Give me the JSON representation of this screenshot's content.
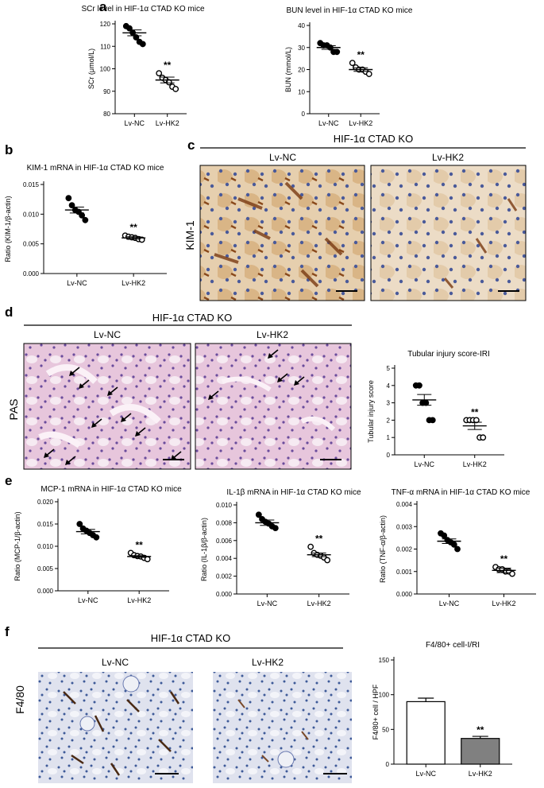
{
  "panels": {
    "a": "a",
    "b": "b",
    "c": "c",
    "d": "d",
    "e": "e",
    "f": "f"
  },
  "group_headers": {
    "c": "HIF-1α CTAD KO",
    "d": "HIF-1α CTAD KO",
    "f": "HIF-1α CTAD KO"
  },
  "micro_labels": {
    "c_left": "Lv-NC",
    "c_right": "Lv-HK2",
    "c_row": "KIM-1",
    "d_left": "Lv-NC",
    "d_right": "Lv-HK2",
    "d_row": "PAS",
    "f_left": "Lv-NC",
    "f_right": "Lv-HK2",
    "f_row": "F4/80"
  },
  "colors": {
    "ihc_bg": "#e9d6c0",
    "ihc_nuclei": "#4a5a9a",
    "ihc_brown": "#a8642a",
    "pas_bg": "#eacbe0",
    "pas_nuclei": "#6a4c9c",
    "f480_bg": "#dfe2ee",
    "f480_nuclei": "#3e5a98",
    "f480_brown": "#4a2a14",
    "bar_hk2": "#808080"
  },
  "icons": {
    "arrow": "black-arrow-icon"
  },
  "chart_data": [
    {
      "id": "a1",
      "type": "scatter",
      "title": "SCr level in HIF-1α CTAD KO mice",
      "ylabel": "SCr (μmol/L)",
      "ylim": [
        80,
        120
      ],
      "yticks": [
        80,
        90,
        100,
        110,
        120
      ],
      "categories": [
        "Lv-NC",
        "Lv-HK2"
      ],
      "series": [
        {
          "values": [
            119,
            118,
            116,
            114,
            112,
            111
          ],
          "mean": 116,
          "sem": 1.3,
          "marker": "filled"
        },
        {
          "values": [
            98,
            96,
            95,
            94,
            92,
            91
          ],
          "mean": 95,
          "sem": 1.3,
          "marker": "open"
        }
      ],
      "significance": [
        {
          "category": "Lv-HK2",
          "label": "**"
        }
      ]
    },
    {
      "id": "a2",
      "type": "scatter",
      "title": "BUN level in HIF-1α CTAD KO mice",
      "ylabel": "BUN (mmol/L)",
      "ylim": [
        0,
        40
      ],
      "yticks": [
        0,
        10,
        20,
        30,
        40
      ],
      "categories": [
        "Lv-NC",
        "Lv-HK2"
      ],
      "series": [
        {
          "values": [
            32,
            31,
            31,
            30,
            28,
            28
          ],
          "mean": 30,
          "sem": 0.8,
          "marker": "filled"
        },
        {
          "values": [
            23,
            21,
            20,
            20,
            19,
            18
          ],
          "mean": 20,
          "sem": 0.8,
          "marker": "open"
        }
      ],
      "significance": [
        {
          "category": "Lv-HK2",
          "label": "**"
        }
      ]
    },
    {
      "id": "b",
      "type": "scatter",
      "title": "KIM-1 mRNA in HIF-1α CTAD KO mice",
      "ylabel": "Ratio (KIM-1/β-actin)",
      "ylim": [
        0,
        0.015
      ],
      "yticks": [
        "0.000",
        "0.005",
        "0.010",
        "0.015"
      ],
      "ytick_values": [
        0,
        0.005,
        0.01,
        0.015
      ],
      "categories": [
        "Lv-NC",
        "Lv-HK2"
      ],
      "series": [
        {
          "values": [
            0.0127,
            0.0115,
            0.0107,
            0.0104,
            0.0098,
            0.009
          ],
          "mean": 0.0107,
          "sem": 0.0005,
          "marker": "filled"
        },
        {
          "values": [
            0.0064,
            0.0062,
            0.0061,
            0.006,
            0.0058,
            0.0057
          ],
          "mean": 0.006,
          "sem": 0.0002,
          "marker": "open"
        }
      ],
      "significance": [
        {
          "category": "Lv-HK2",
          "label": "**"
        }
      ]
    },
    {
      "id": "d",
      "type": "scatter",
      "title": "Tubular injury score-IRI",
      "ylabel": "Tubular injury score",
      "ylim": [
        0,
        5
      ],
      "yticks": [
        0,
        1,
        2,
        3,
        4,
        5
      ],
      "categories": [
        "Lv-NC",
        "Lv-HK2"
      ],
      "series": [
        {
          "values": [
            4,
            4,
            3,
            3,
            2,
            2
          ],
          "mean": 3.17,
          "sem": 0.31,
          "marker": "filled"
        },
        {
          "values": [
            2,
            2,
            2,
            2,
            1,
            1
          ],
          "mean": 1.67,
          "sem": 0.21,
          "marker": "open"
        }
      ],
      "significance": [
        {
          "category": "Lv-HK2",
          "label": "**"
        }
      ]
    },
    {
      "id": "e1",
      "type": "scatter",
      "title": "MCP-1 mRNA in HIF-1α CTAD KO mice",
      "ylabel": "Ratio (MCP-1/β-actin)",
      "ylim": [
        0,
        0.02
      ],
      "yticks": [
        "0.000",
        "0.005",
        "0.010",
        "0.015",
        "0.020"
      ],
      "ytick_values": [
        0,
        0.005,
        0.01,
        0.015,
        0.02
      ],
      "categories": [
        "Lv-NC",
        "Lv-HK2"
      ],
      "series": [
        {
          "values": [
            0.015,
            0.014,
            0.0135,
            0.013,
            0.0125,
            0.012
          ],
          "mean": 0.0133,
          "sem": 0.0005,
          "marker": "filled"
        },
        {
          "values": [
            0.0085,
            0.008,
            0.0078,
            0.0077,
            0.0074,
            0.0071
          ],
          "mean": 0.0077,
          "sem": 0.0002,
          "marker": "open"
        }
      ],
      "significance": [
        {
          "category": "Lv-HK2",
          "label": "**"
        }
      ]
    },
    {
      "id": "e2",
      "type": "scatter",
      "title": "IL-1β mRNA in HIF-1α CTAD KO mice",
      "ylabel": "Ratio (IL-1β/β-actin)",
      "ylim": [
        0,
        0.01
      ],
      "yticks": [
        "0.000",
        "0.002",
        "0.004",
        "0.006",
        "0.008",
        "0.010"
      ],
      "ytick_values": [
        0,
        0.002,
        0.004,
        0.006,
        0.008,
        0.01
      ],
      "categories": [
        "Lv-NC",
        "Lv-HK2"
      ],
      "series": [
        {
          "values": [
            0.0089,
            0.0084,
            0.0081,
            0.0079,
            0.0076,
            0.0074
          ],
          "mean": 0.008,
          "sem": 0.0003,
          "marker": "filled"
        },
        {
          "values": [
            0.0053,
            0.0046,
            0.0044,
            0.0043,
            0.0041,
            0.0038
          ],
          "mean": 0.0044,
          "sem": 0.0002,
          "marker": "open"
        }
      ],
      "significance": [
        {
          "category": "Lv-HK2",
          "label": "**"
        }
      ]
    },
    {
      "id": "e3",
      "type": "scatter",
      "title": "TNF-α mRNA in HIF-1α CTAD KO mice",
      "ylabel": "Ratio (TNF-α/β-actin)",
      "ylim": [
        0,
        0.004
      ],
      "yticks": [
        "0.000",
        "0.001",
        "0.002",
        "0.003",
        "0.004"
      ],
      "ytick_values": [
        0,
        0.001,
        0.002,
        0.003,
        0.004
      ],
      "categories": [
        "Lv-NC",
        "Lv-HK2"
      ],
      "series": [
        {
          "values": [
            0.0027,
            0.0026,
            0.0024,
            0.0023,
            0.0022,
            0.002
          ],
          "mean": 0.00235,
          "sem": 0.0001,
          "marker": "filled"
        },
        {
          "values": [
            0.0012,
            0.0011,
            0.0011,
            0.001,
            0.001,
            0.0009
          ],
          "mean": 0.00105,
          "sem": 0.0001,
          "marker": "open"
        }
      ],
      "significance": [
        {
          "category": "Lv-HK2",
          "label": "**"
        }
      ]
    },
    {
      "id": "f",
      "type": "bar",
      "title": "F4/80+ cell-I/RI",
      "ylabel": "F4/80+ cell / HPF",
      "ylim": [
        0,
        150
      ],
      "yticks": [
        0,
        50,
        100,
        150
      ],
      "categories": [
        "Lv-NC",
        "Lv-HK2"
      ],
      "values": [
        90,
        37
      ],
      "errors": [
        5,
        3
      ],
      "bar_fills": [
        "#ffffff",
        "#808080"
      ],
      "significance": [
        {
          "category": "Lv-HK2",
          "label": "**"
        }
      ]
    }
  ]
}
